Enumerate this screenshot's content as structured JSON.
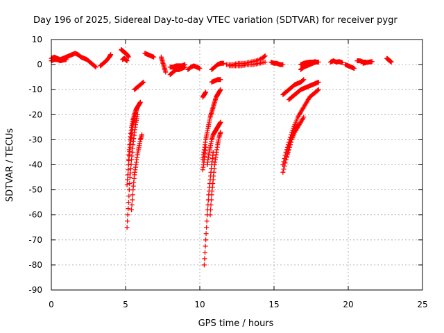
{
  "chart_data": {
    "type": "scatter",
    "title": "Day 196 of 2025, Sidereal Day-to-day VTEC variation (SDTVAR) for receiver pygr",
    "xlabel": "GPS time / hours",
    "ylabel": "SDTVAR / TECUs",
    "xlim": [
      0,
      25
    ],
    "ylim": [
      -90,
      10
    ],
    "xticks": [
      "0",
      "5",
      "10",
      "15",
      "20",
      "25"
    ],
    "yticks": [
      "10",
      "0",
      "-10",
      "-20",
      "-30",
      "-40",
      "-50",
      "-60",
      "-70",
      "-80",
      "-90"
    ],
    "grid": true,
    "marker": "plus",
    "color": "#ff0000",
    "series": [
      {
        "x": [
          0.0,
          0.2,
          0.4,
          0.6,
          0.8,
          1.0,
          1.2,
          1.4,
          1.6,
          1.8,
          2.0,
          2.2,
          2.4,
          2.6,
          2.8,
          3.0
        ],
        "y": [
          2.5,
          3,
          2.5,
          2,
          2.5,
          3,
          3.5,
          4,
          4.5,
          4,
          3,
          2.5,
          2,
          1,
          0,
          -1
        ]
      },
      {
        "x": [
          0.0,
          0.2,
          0.4,
          0.6,
          0.8,
          1.0
        ],
        "y": [
          1.5,
          2,
          2,
          1.5,
          1.8,
          2
        ]
      },
      {
        "x": [
          3.3,
          3.5,
          3.7,
          3.9,
          4.0
        ],
        "y": [
          -0.5,
          0.5,
          1.5,
          3,
          4
        ]
      },
      {
        "x": [
          4.7,
          4.8,
          4.9,
          5.0,
          5.1,
          5.2
        ],
        "y": [
          6,
          5.5,
          5,
          4.5,
          4,
          3
        ]
      },
      {
        "x": [
          4.8,
          4.9,
          5.0,
          5.1
        ],
        "y": [
          2,
          2.5,
          2,
          1.5
        ]
      },
      {
        "x": [
          6.3,
          6.5,
          6.7,
          6.9
        ],
        "y": [
          4.5,
          4,
          3.5,
          3
        ]
      },
      {
        "x": [
          5.1,
          5.2,
          5.3,
          5.4,
          5.5,
          5.6,
          5.7,
          5.8
        ],
        "y": [
          -65,
          -55,
          -45,
          -38,
          -32,
          -27,
          -23,
          -20
        ]
      },
      {
        "x": [
          5.1,
          5.2,
          5.3,
          5.4,
          5.5,
          5.6,
          5.7,
          5.8,
          5.9,
          6.0
        ],
        "y": [
          -48,
          -40,
          -33,
          -28,
          -24,
          -21,
          -19,
          -17,
          -16,
          -15
        ]
      },
      {
        "x": [
          5.2,
          5.3,
          5.4,
          5.5,
          5.6,
          5.7,
          5.8
        ],
        "y": [
          -38,
          -30,
          -25,
          -22,
          -20,
          -18,
          -17
        ]
      },
      {
        "x": [
          5.4,
          5.5,
          5.6,
          5.7,
          5.8,
          5.9,
          6.0,
          6.1
        ],
        "y": [
          -58,
          -50,
          -44,
          -40,
          -36,
          -33,
          -30,
          -28
        ]
      },
      {
        "x": [
          5.6,
          5.8,
          6.0,
          6.2
        ],
        "y": [
          -10,
          -9,
          -8,
          -7
        ]
      },
      {
        "x": [
          7.4,
          7.5,
          7.6,
          7.7
        ],
        "y": [
          3,
          1,
          -1,
          -3
        ]
      },
      {
        "x": [
          8.0,
          8.2,
          8.4,
          8.6,
          8.8,
          9.0
        ],
        "y": [
          -4,
          -3,
          -2,
          -2,
          -1.5,
          -1
        ]
      },
      {
        "x": [
          8.0,
          8.2,
          8.4,
          8.6,
          8.8,
          9.0
        ],
        "y": [
          -1,
          -1,
          -0.5,
          -0.5,
          -0.5,
          0
        ]
      },
      {
        "x": [
          9.2,
          9.4,
          9.6,
          9.8,
          10.0
        ],
        "y": [
          -2,
          -1,
          -0.5,
          -1,
          -1.5
        ]
      },
      {
        "x": [
          10.2,
          10.3,
          10.4,
          10.5,
          10.6,
          10.7,
          10.8,
          10.9,
          11.0,
          11.1,
          11.2,
          11.3,
          11.4
        ],
        "y": [
          -38,
          -34,
          -30,
          -27,
          -24,
          -21,
          -19,
          -17,
          -15,
          -13,
          -12,
          -11,
          -10
        ]
      },
      {
        "x": [
          10.2,
          10.3,
          10.4
        ],
        "y": [
          -42,
          -38,
          -33
        ]
      },
      {
        "x": [
          10.3,
          10.4,
          10.5,
          10.6,
          10.7,
          10.8,
          10.9
        ],
        "y": [
          -80,
          -70,
          -60,
          -52,
          -46,
          -40,
          -35
        ]
      },
      {
        "x": [
          10.5,
          10.6,
          10.7,
          10.8,
          10.9,
          11.0,
          11.1,
          11.2,
          11.3,
          11.4
        ],
        "y": [
          -40,
          -36,
          -33,
          -30,
          -28,
          -27,
          -26,
          -25,
          -24,
          -23
        ]
      },
      {
        "x": [
          10.7,
          10.8,
          10.9,
          11.0,
          11.1,
          11.2,
          11.3,
          11.4
        ],
        "y": [
          -60,
          -52,
          -46,
          -40,
          -36,
          -32,
          -29,
          -27
        ]
      },
      {
        "x": [
          10.2,
          10.3,
          10.4
        ],
        "y": [
          -13,
          -12,
          -11
        ]
      },
      {
        "x": [
          10.8,
          11.0,
          11.2,
          11.4
        ],
        "y": [
          -7,
          -6.5,
          -6,
          -6
        ]
      },
      {
        "x": [
          10.8,
          11.0,
          11.2,
          11.4,
          11.6
        ],
        "y": [
          -2,
          -1,
          0,
          0.5,
          0.5
        ]
      },
      {
        "x": [
          11.8,
          12.2,
          12.6,
          13.0,
          13.4,
          13.8,
          14.2,
          14.4
        ],
        "y": [
          0,
          0,
          0.5,
          0.5,
          1,
          1.5,
          2.5,
          3.5
        ]
      },
      {
        "x": [
          12.0,
          12.4,
          12.8,
          13.2,
          13.6,
          14.0,
          14.4
        ],
        "y": [
          -0.5,
          -0.5,
          -0.5,
          0,
          0,
          0.5,
          1
        ]
      },
      {
        "x": [
          14.8,
          15.0,
          15.2,
          15.4,
          15.6
        ],
        "y": [
          1,
          0.5,
          0.5,
          0,
          0
        ]
      },
      {
        "x": [
          15.6,
          15.8,
          16.0,
          16.2,
          16.4,
          16.6,
          16.8,
          17.0,
          17.2,
          17.4,
          17.6,
          17.8,
          18.0
        ],
        "y": [
          -40,
          -35,
          -31,
          -27,
          -24,
          -21,
          -19,
          -17,
          -15,
          -13,
          -12,
          -11,
          -10
        ]
      },
      {
        "x": [
          15.6,
          15.8,
          16.0,
          16.2,
          16.4,
          16.6
        ],
        "y": [
          -43,
          -38,
          -33,
          -29,
          -26,
          -24
        ]
      },
      {
        "x": [
          15.8,
          16.0,
          16.2,
          16.4,
          16.6,
          16.8,
          17.0
        ],
        "y": [
          -38,
          -34,
          -30,
          -27,
          -25,
          -23,
          -21
        ]
      },
      {
        "x": [
          15.6,
          15.8,
          16.0,
          16.2,
          16.4,
          16.6,
          16.8,
          17.0
        ],
        "y": [
          -12,
          -11,
          -10,
          -9,
          -8,
          -7.5,
          -7,
          -6
        ]
      },
      {
        "x": [
          16.0,
          16.2,
          16.4,
          16.6,
          16.8,
          17.0,
          17.2,
          17.4,
          17.6,
          17.8,
          18.0
        ],
        "y": [
          -14,
          -13,
          -12,
          -11,
          -10,
          -9.5,
          -9,
          -8.5,
          -8,
          -7.5,
          -7
        ]
      },
      {
        "x": [
          16.8,
          17.0,
          17.2,
          17.4,
          17.6,
          17.8,
          18.0
        ],
        "y": [
          -2,
          -1,
          -0.5,
          0,
          0.5,
          1,
          1
        ]
      },
      {
        "x": [
          16.8,
          17.0,
          17.2,
          17.4,
          17.6,
          17.8
        ],
        "y": [
          0,
          0.5,
          0.8,
          1,
          1,
          1.2
        ]
      },
      {
        "x": [
          18.8,
          19.0,
          19.2,
          19.4,
          19.6
        ],
        "y": [
          1,
          1.5,
          1,
          1.2,
          0.8
        ]
      },
      {
        "x": [
          19.8,
          20.0,
          20.2,
          20.4
        ],
        "y": [
          0,
          -0.5,
          -1,
          -1.5
        ]
      },
      {
        "x": [
          20.6,
          20.8,
          21.0,
          21.2
        ],
        "y": [
          1.5,
          1.5,
          1,
          1
        ]
      },
      {
        "x": [
          21.0,
          21.2,
          21.4,
          21.6
        ],
        "y": [
          0.5,
          0.8,
          1,
          1.2
        ]
      },
      {
        "x": [
          22.6,
          22.7,
          22.8,
          22.9
        ],
        "y": [
          2.5,
          2,
          1.5,
          1
        ]
      }
    ]
  }
}
